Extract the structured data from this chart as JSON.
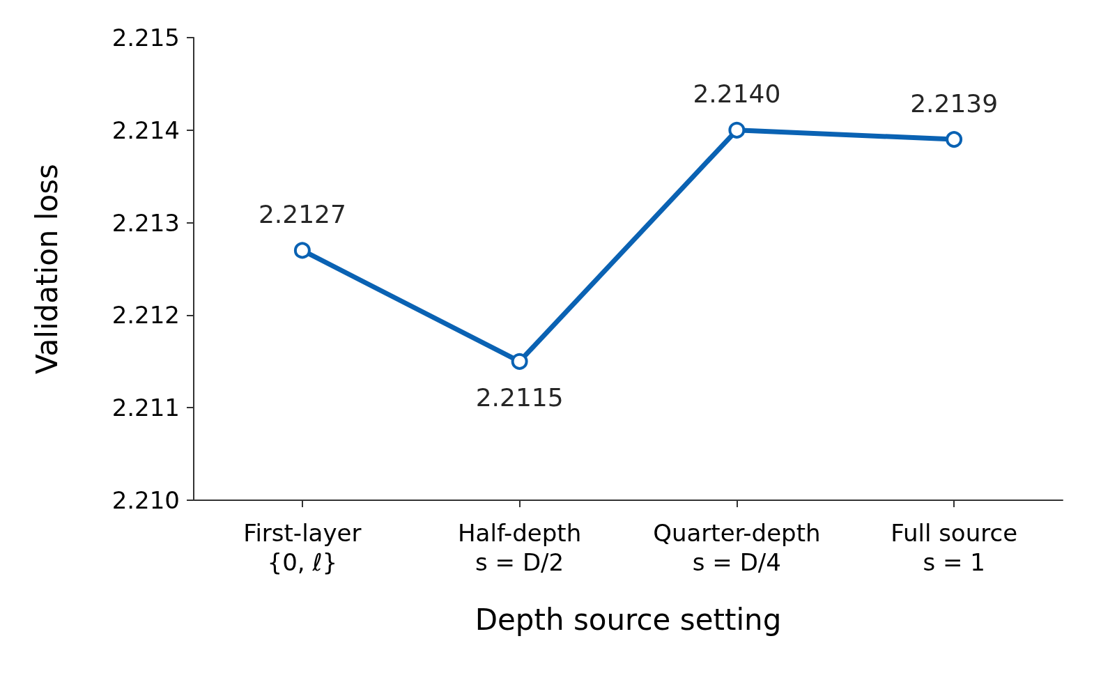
{
  "chart_data": {
    "type": "line",
    "xlabel": "Depth source setting",
    "ylabel": "Validation loss",
    "categories": [
      "First-layer\n{0, ℓ}",
      "Half-depth\ns = D/2",
      "Quarter-depth\ns = D/4",
      "Full source\ns = 1"
    ],
    "series": [
      {
        "color": "#0a62b3",
        "values": [
          2.2127,
          2.2115,
          2.214,
          2.2139
        ],
        "value_labels": [
          "2.2127",
          "2.2115",
          "2.2140",
          "2.2139"
        ]
      }
    ],
    "ylim": [
      2.21,
      2.215
    ],
    "yticks": [
      {
        "value": 2.21,
        "label": "2.210"
      },
      {
        "value": 2.211,
        "label": "2.211"
      },
      {
        "value": 2.212,
        "label": "2.212"
      },
      {
        "value": 2.213,
        "label": "2.213"
      },
      {
        "value": 2.214,
        "label": "2.214"
      },
      {
        "value": 2.215,
        "label": "2.215"
      }
    ],
    "marker": "circle",
    "line_style": "solid"
  }
}
